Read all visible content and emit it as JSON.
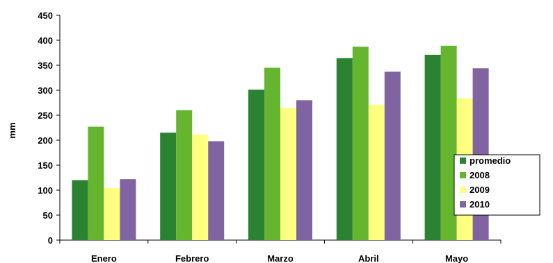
{
  "chart_data": {
    "type": "bar",
    "title": "",
    "xlabel": "",
    "ylabel": "mm",
    "ylim": [
      0,
      450
    ],
    "yticks": [
      0,
      50,
      100,
      150,
      200,
      250,
      300,
      350,
      400,
      450
    ],
    "categories": [
      "Enero",
      "Febrero",
      "Marzo",
      "Abril",
      "Mayo"
    ],
    "series": [
      {
        "name": "promedio",
        "color": "#2A8232",
        "values": [
          120,
          215,
          301,
          364,
          371
        ]
      },
      {
        "name": "2008",
        "color": "#66B52F",
        "values": [
          227,
          260,
          345,
          387,
          389
        ]
      },
      {
        "name": "2009",
        "color": "#FFFF80",
        "values": [
          104,
          211,
          264,
          271,
          284
        ]
      },
      {
        "name": "2010",
        "color": "#8064A2",
        "values": [
          122,
          198,
          280,
          337,
          344
        ]
      }
    ],
    "grid": false,
    "legend_position": "right"
  }
}
